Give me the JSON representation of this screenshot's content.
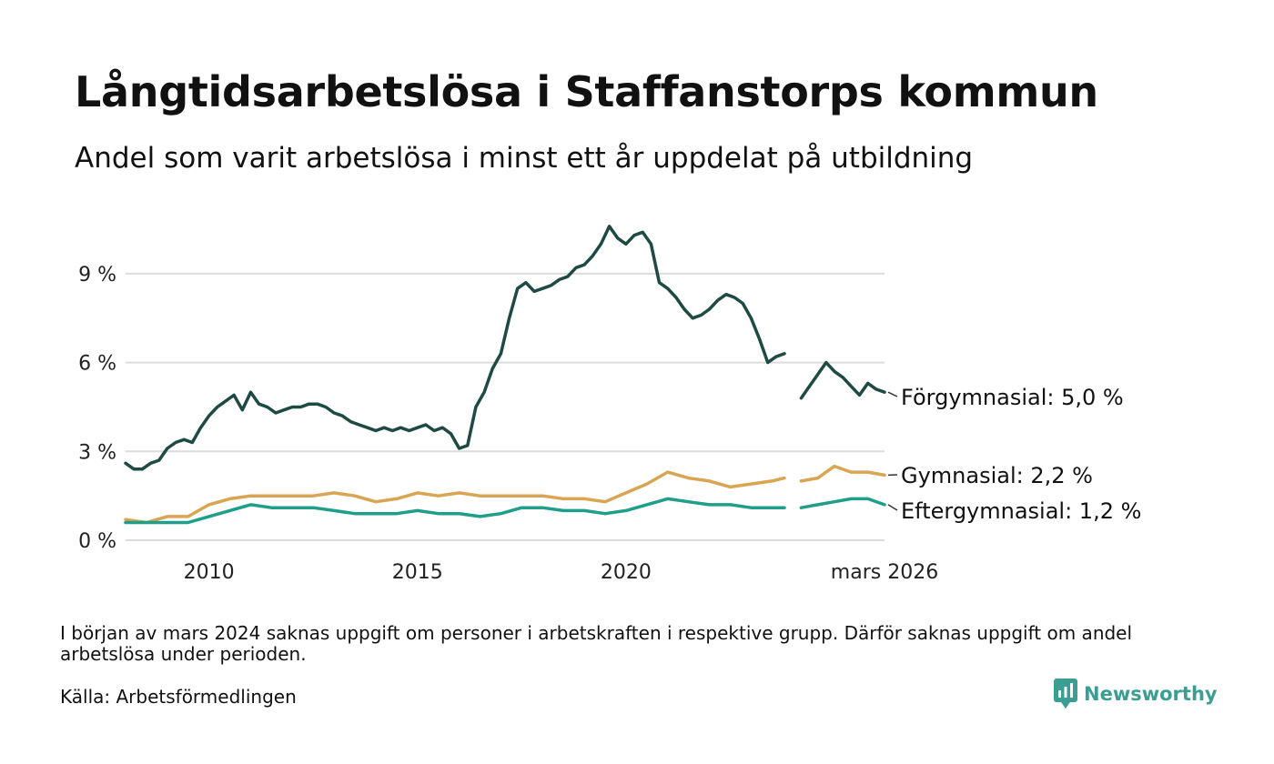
{
  "header": {
    "title": "Långtidsarbetslösa i Staffanstorps kommun",
    "subtitle": "Andel som varit arbetslösa i minst ett år uppdelat på utbildning"
  },
  "chart_data": {
    "type": "line",
    "title": "Långtidsarbetslösa i Staffanstorps kommun",
    "subtitle": "Andel som varit arbetslösa i minst ett år uppdelat på utbildning",
    "xlabel": "",
    "ylabel": "",
    "xlim": [
      2008.0,
      2026.2
    ],
    "ylim": [
      0,
      11.3
    ],
    "grid": true,
    "y_ticks": [
      {
        "value": 0,
        "label": "0 %"
      },
      {
        "value": 3,
        "label": "3 %"
      },
      {
        "value": 6,
        "label": "6 %"
      },
      {
        "value": 9,
        "label": "9 %"
      }
    ],
    "x_ticks": [
      {
        "value": 2010,
        "label": "2010"
      },
      {
        "value": 2015,
        "label": "2015"
      },
      {
        "value": 2020,
        "label": "2020"
      },
      {
        "value": 2026.2,
        "label": "mars 2026"
      }
    ],
    "gap": {
      "from": 2023.8,
      "to": 2024.2
    },
    "series": [
      {
        "name": "Förgymnasial",
        "color": "#1f4a44",
        "end_label": "Förgymnasial: 5,0 %",
        "x": [
          2008.0,
          2008.2,
          2008.4,
          2008.6,
          2008.8,
          2009.0,
          2009.2,
          2009.4,
          2009.6,
          2009.8,
          2010.0,
          2010.2,
          2010.4,
          2010.6,
          2010.8,
          2011.0,
          2011.2,
          2011.4,
          2011.6,
          2011.8,
          2012.0,
          2012.2,
          2012.4,
          2012.6,
          2012.8,
          2013.0,
          2013.2,
          2013.4,
          2013.6,
          2013.8,
          2014.0,
          2014.2,
          2014.4,
          2014.6,
          2014.8,
          2015.0,
          2015.2,
          2015.4,
          2015.6,
          2015.8,
          2016.0,
          2016.2,
          2016.4,
          2016.6,
          2016.8,
          2017.0,
          2017.2,
          2017.4,
          2017.6,
          2017.8,
          2018.0,
          2018.2,
          2018.4,
          2018.6,
          2018.8,
          2019.0,
          2019.2,
          2019.4,
          2019.6,
          2019.8,
          2020.0,
          2020.2,
          2020.4,
          2020.6,
          2020.8,
          2021.0,
          2021.2,
          2021.4,
          2021.6,
          2021.8,
          2022.0,
          2022.2,
          2022.4,
          2022.6,
          2022.8,
          2023.0,
          2023.2,
          2023.4,
          2023.6,
          2023.8,
          null,
          2024.2,
          2024.4,
          2024.6,
          2024.8,
          2025.0,
          2025.2,
          2025.4,
          2025.6,
          2025.8,
          2026.0,
          2026.2
        ],
        "values": [
          2.6,
          2.4,
          2.4,
          2.6,
          2.7,
          3.1,
          3.3,
          3.4,
          3.3,
          3.8,
          4.2,
          4.5,
          4.7,
          4.9,
          4.4,
          5.0,
          4.6,
          4.5,
          4.3,
          4.4,
          4.5,
          4.5,
          4.6,
          4.6,
          4.5,
          4.3,
          4.2,
          4.0,
          3.9,
          3.8,
          3.7,
          3.8,
          3.7,
          3.8,
          3.7,
          3.8,
          3.9,
          3.7,
          3.8,
          3.6,
          3.1,
          3.2,
          4.5,
          5.0,
          5.8,
          6.3,
          7.5,
          8.5,
          8.7,
          8.4,
          8.5,
          8.6,
          8.8,
          8.9,
          9.2,
          9.3,
          9.6,
          10.0,
          10.6,
          10.2,
          10.0,
          10.3,
          10.4,
          10.0,
          8.7,
          8.5,
          8.2,
          7.8,
          7.5,
          7.6,
          7.8,
          8.1,
          8.3,
          8.2,
          8.0,
          7.5,
          6.8,
          6.0,
          6.2,
          6.3,
          null,
          4.8,
          5.2,
          5.6,
          6.0,
          5.7,
          5.5,
          5.2,
          4.9,
          5.3,
          5.1,
          5.0
        ]
      },
      {
        "name": "Gymnasial",
        "color": "#d9a553",
        "end_label": "Gymnasial: 2,2 %",
        "x": [
          2008.0,
          2008.5,
          2009.0,
          2009.5,
          2010.0,
          2010.5,
          2011.0,
          2011.5,
          2012.0,
          2012.5,
          2013.0,
          2013.5,
          2014.0,
          2014.5,
          2015.0,
          2015.5,
          2016.0,
          2016.5,
          2017.0,
          2017.5,
          2018.0,
          2018.5,
          2019.0,
          2019.5,
          2020.0,
          2020.5,
          2021.0,
          2021.5,
          2022.0,
          2022.5,
          2023.0,
          2023.5,
          2023.8,
          null,
          2024.2,
          2024.6,
          2025.0,
          2025.4,
          2025.8,
          2026.2
        ],
        "values": [
          0.7,
          0.6,
          0.8,
          0.8,
          1.2,
          1.4,
          1.5,
          1.5,
          1.5,
          1.5,
          1.6,
          1.5,
          1.3,
          1.4,
          1.6,
          1.5,
          1.6,
          1.5,
          1.5,
          1.5,
          1.5,
          1.4,
          1.4,
          1.3,
          1.6,
          1.9,
          2.3,
          2.1,
          2.0,
          1.8,
          1.9,
          2.0,
          2.1,
          null,
          2.0,
          2.1,
          2.5,
          2.3,
          2.3,
          2.2
        ]
      },
      {
        "name": "Eftergymnasial",
        "color": "#1f9e89",
        "end_label": "Eftergymnasial: 1,2 %",
        "x": [
          2008.0,
          2008.5,
          2009.0,
          2009.5,
          2010.0,
          2010.5,
          2011.0,
          2011.5,
          2012.0,
          2012.5,
          2013.0,
          2013.5,
          2014.0,
          2014.5,
          2015.0,
          2015.5,
          2016.0,
          2016.5,
          2017.0,
          2017.5,
          2018.0,
          2018.5,
          2019.0,
          2019.5,
          2020.0,
          2020.5,
          2021.0,
          2021.5,
          2022.0,
          2022.5,
          2023.0,
          2023.5,
          2023.8,
          null,
          2024.2,
          2024.6,
          2025.0,
          2025.4,
          2025.8,
          2026.2
        ],
        "values": [
          0.6,
          0.6,
          0.6,
          0.6,
          0.8,
          1.0,
          1.2,
          1.1,
          1.1,
          1.1,
          1.0,
          0.9,
          0.9,
          0.9,
          1.0,
          0.9,
          0.9,
          0.8,
          0.9,
          1.1,
          1.1,
          1.0,
          1.0,
          0.9,
          1.0,
          1.2,
          1.4,
          1.3,
          1.2,
          1.2,
          1.1,
          1.1,
          1.1,
          null,
          1.1,
          1.2,
          1.3,
          1.4,
          1.4,
          1.2
        ]
      }
    ]
  },
  "footer": {
    "note": "I början av mars 2024 saknas uppgift om personer i arbetskraften i respektive grupp. Därför saknas uppgift om andel arbetslösa under perioden.",
    "source": "Källa: Arbetsförmedlingen",
    "brand": "Newsworthy",
    "brand_icon": "newsworthy-logo-icon"
  }
}
